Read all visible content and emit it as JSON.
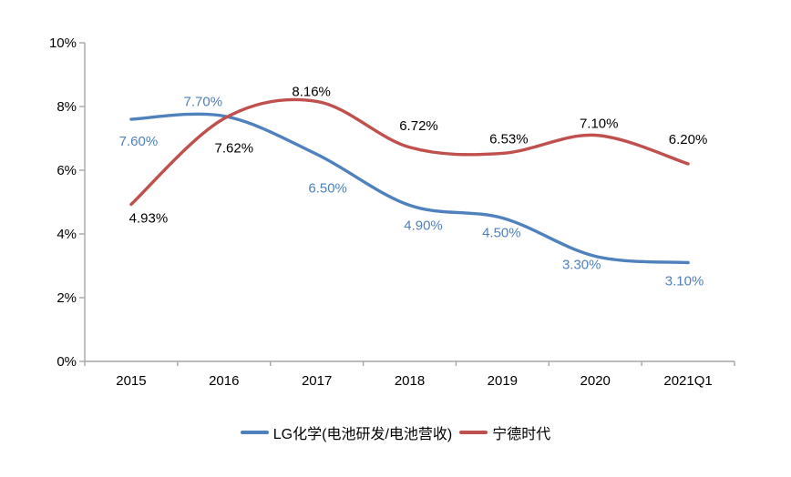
{
  "chart_data": {
    "type": "line",
    "smooth": true,
    "categories": [
      "2015",
      "2016",
      "2017",
      "2018",
      "2019",
      "2020",
      "2021Q1"
    ],
    "series": [
      {
        "name": "LG化学(电池研发/电池营收)",
        "color": "#4F81BD",
        "label_color": "#4F81BD",
        "values": [
          7.6,
          7.7,
          6.5,
          4.9,
          4.5,
          3.3,
          3.1
        ],
        "labels": [
          "7.60%",
          "7.70%",
          "6.50%",
          "4.90%",
          "4.50%",
          "3.30%",
          "3.10%"
        ]
      },
      {
        "name": "宁德时代",
        "color": "#C0504D",
        "label_color": "#000000",
        "values": [
          4.93,
          7.62,
          8.16,
          6.72,
          6.53,
          7.1,
          6.2
        ],
        "labels": [
          "4.93%",
          "7.62%",
          "8.16%",
          "6.72%",
          "6.53%",
          "7.10%",
          "6.20%"
        ]
      }
    ],
    "ylim": [
      0,
      10
    ],
    "ytick_step": 2,
    "ytick_labels": [
      "0%",
      "2%",
      "4%",
      "6%",
      "8%",
      "10%"
    ],
    "grid": false,
    "legend_position": "bottom",
    "axis_color": "#A6A6A6",
    "tick_label_color": "#000000"
  }
}
